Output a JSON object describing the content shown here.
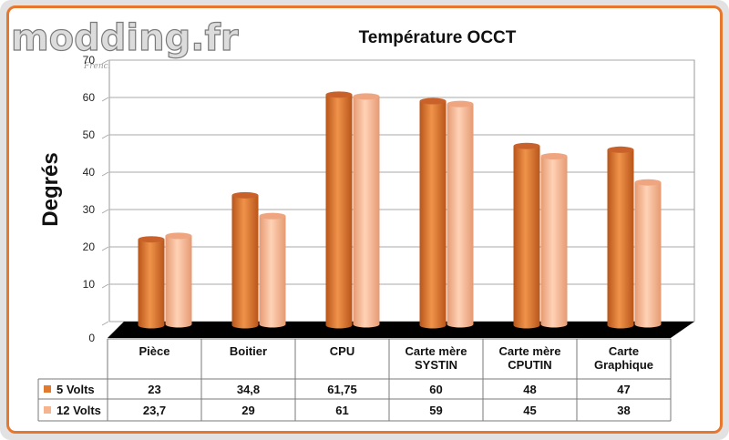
{
  "watermark": {
    "logo_text": "modding.fr",
    "tagline": "French Touch"
  },
  "chart_data": {
    "type": "bar",
    "title": "Température OCCT",
    "ylabel": "Degrés",
    "xlabel": "",
    "ylim": [
      0,
      70
    ],
    "yticks": [
      "0",
      "10",
      "20",
      "30",
      "40",
      "50",
      "60",
      "70"
    ],
    "categories": [
      [
        "Pièce"
      ],
      [
        "Boitier"
      ],
      [
        "CPU"
      ],
      [
        "Carte mère",
        "SYSTIN"
      ],
      [
        "Carte mère",
        "CPUTIN"
      ],
      [
        "Carte",
        "Graphique"
      ]
    ],
    "series": [
      {
        "name": "5 Volts",
        "color": "#e07a2e",
        "values": [
          23,
          34.8,
          61.75,
          60,
          48,
          47
        ],
        "labels": [
          "23",
          "34,8",
          "61,75",
          "60",
          "48",
          "47"
        ]
      },
      {
        "name": "12 Volts",
        "color": "#f6b48e",
        "values": [
          23.7,
          29,
          61,
          59,
          45,
          38
        ],
        "labels": [
          "23,7",
          "29",
          "61",
          "59",
          "45",
          "38"
        ]
      }
    ],
    "grid": true,
    "legend": "data-table"
  }
}
